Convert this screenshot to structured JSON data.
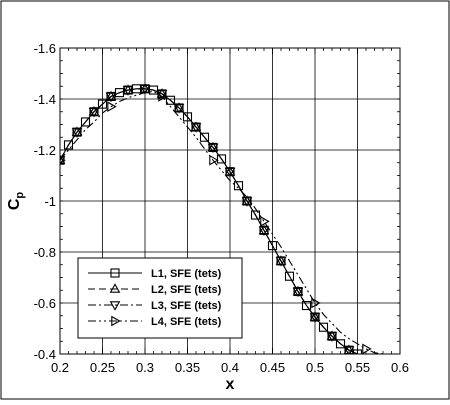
{
  "chart_data": {
    "type": "line",
    "xlabel": "x",
    "ylabel": "C",
    "ylabel_sub": "p",
    "xlim": [
      0.2,
      0.6
    ],
    "ylim": [
      -0.4,
      -1.6
    ],
    "y_reversed": true,
    "grid": true,
    "xticks": [
      "0.2",
      "0.25",
      "0.3",
      "0.35",
      "0.4",
      "0.45",
      "0.5",
      "0.55",
      "0.6"
    ],
    "xtick_values": [
      0.2,
      0.25,
      0.3,
      0.35,
      0.4,
      0.45,
      0.5,
      0.55,
      0.6
    ],
    "yticks": [
      "-0.4",
      "-0.6",
      "-0.8",
      "-1",
      "-1.2",
      "-1.4",
      "-1.6"
    ],
    "ytick_values": [
      -0.4,
      -0.6,
      -0.8,
      -1.0,
      -1.2,
      -1.4,
      -1.6
    ],
    "legend_position": "bottom-left",
    "series": [
      {
        "name": "L1, SFE (tets)",
        "line_style": "solid",
        "marker": "square",
        "x": [
          0.2,
          0.21,
          0.22,
          0.23,
          0.24,
          0.25,
          0.26,
          0.27,
          0.28,
          0.29,
          0.3,
          0.31,
          0.32,
          0.33,
          0.34,
          0.35,
          0.36,
          0.37,
          0.38,
          0.39,
          0.4,
          0.41,
          0.42,
          0.43,
          0.44,
          0.45,
          0.46,
          0.47,
          0.48,
          0.49,
          0.5,
          0.51,
          0.52,
          0.53,
          0.54,
          0.55
        ],
        "y": [
          -1.16,
          -1.22,
          -1.27,
          -1.31,
          -1.35,
          -1.38,
          -1.41,
          -1.425,
          -1.435,
          -1.44,
          -1.44,
          -1.435,
          -1.42,
          -1.395,
          -1.365,
          -1.33,
          -1.29,
          -1.25,
          -1.21,
          -1.165,
          -1.115,
          -1.06,
          -1.0,
          -0.945,
          -0.885,
          -0.825,
          -0.765,
          -0.705,
          -0.645,
          -0.59,
          -0.545,
          -0.505,
          -0.47,
          -0.44,
          -0.415,
          -0.4
        ]
      },
      {
        "name": "L2, SFE (tets)",
        "line_style": "dashed",
        "marker": "triangle-up",
        "x": [
          0.2,
          0.21,
          0.22,
          0.23,
          0.24,
          0.25,
          0.26,
          0.27,
          0.28,
          0.29,
          0.3,
          0.31,
          0.32,
          0.33,
          0.34,
          0.35,
          0.36,
          0.37,
          0.38,
          0.39,
          0.4,
          0.41,
          0.42,
          0.43,
          0.44,
          0.45,
          0.46,
          0.47,
          0.48,
          0.49,
          0.5,
          0.51,
          0.52,
          0.53,
          0.54,
          0.55
        ],
        "y": [
          -1.16,
          -1.22,
          -1.27,
          -1.31,
          -1.35,
          -1.38,
          -1.41,
          -1.425,
          -1.435,
          -1.44,
          -1.44,
          -1.435,
          -1.42,
          -1.395,
          -1.365,
          -1.33,
          -1.29,
          -1.25,
          -1.21,
          -1.165,
          -1.115,
          -1.06,
          -1.0,
          -0.945,
          -0.885,
          -0.825,
          -0.765,
          -0.705,
          -0.645,
          -0.59,
          -0.545,
          -0.505,
          -0.47,
          -0.44,
          -0.415,
          -0.4
        ]
      },
      {
        "name": "L3, SFE (tets)",
        "line_style": "dash-dot",
        "marker": "triangle-down",
        "x": [
          0.2,
          0.21,
          0.22,
          0.23,
          0.24,
          0.25,
          0.26,
          0.27,
          0.28,
          0.29,
          0.3,
          0.31,
          0.32,
          0.33,
          0.34,
          0.35,
          0.36,
          0.37,
          0.38,
          0.39,
          0.4,
          0.41,
          0.42,
          0.43,
          0.44,
          0.45,
          0.46,
          0.47,
          0.48,
          0.49,
          0.5,
          0.51,
          0.52,
          0.53,
          0.54,
          0.55
        ],
        "y": [
          -1.16,
          -1.22,
          -1.27,
          -1.31,
          -1.35,
          -1.38,
          -1.41,
          -1.425,
          -1.435,
          -1.44,
          -1.44,
          -1.435,
          -1.42,
          -1.395,
          -1.365,
          -1.33,
          -1.29,
          -1.25,
          -1.21,
          -1.165,
          -1.115,
          -1.06,
          -1.0,
          -0.945,
          -0.885,
          -0.825,
          -0.765,
          -0.705,
          -0.645,
          -0.59,
          -0.545,
          -0.505,
          -0.47,
          -0.44,
          -0.415,
          -0.4
        ]
      },
      {
        "name": "L4, SFE (tets)",
        "line_style": "dash-dot-dot",
        "marker": "triangle-right",
        "x": [
          0.2,
          0.21,
          0.22,
          0.23,
          0.24,
          0.25,
          0.26,
          0.27,
          0.28,
          0.29,
          0.3,
          0.31,
          0.32,
          0.33,
          0.34,
          0.35,
          0.36,
          0.37,
          0.38,
          0.39,
          0.4,
          0.41,
          0.42,
          0.43,
          0.44,
          0.45,
          0.46,
          0.47,
          0.48,
          0.49,
          0.5,
          0.51,
          0.52,
          0.53,
          0.54,
          0.55,
          0.56,
          0.57,
          0.58
        ],
        "y": [
          -1.16,
          -1.2,
          -1.24,
          -1.28,
          -1.31,
          -1.345,
          -1.37,
          -1.39,
          -1.405,
          -1.415,
          -1.425,
          -1.43,
          -1.41,
          -1.37,
          -1.33,
          -1.29,
          -1.25,
          -1.205,
          -1.16,
          -1.12,
          -1.08,
          -1.05,
          -1.015,
          -0.97,
          -0.92,
          -0.87,
          -0.82,
          -0.765,
          -0.71,
          -0.655,
          -0.6,
          -0.555,
          -0.52,
          -0.485,
          -0.46,
          -0.44,
          -0.42,
          -0.405,
          -0.4
        ]
      }
    ]
  }
}
